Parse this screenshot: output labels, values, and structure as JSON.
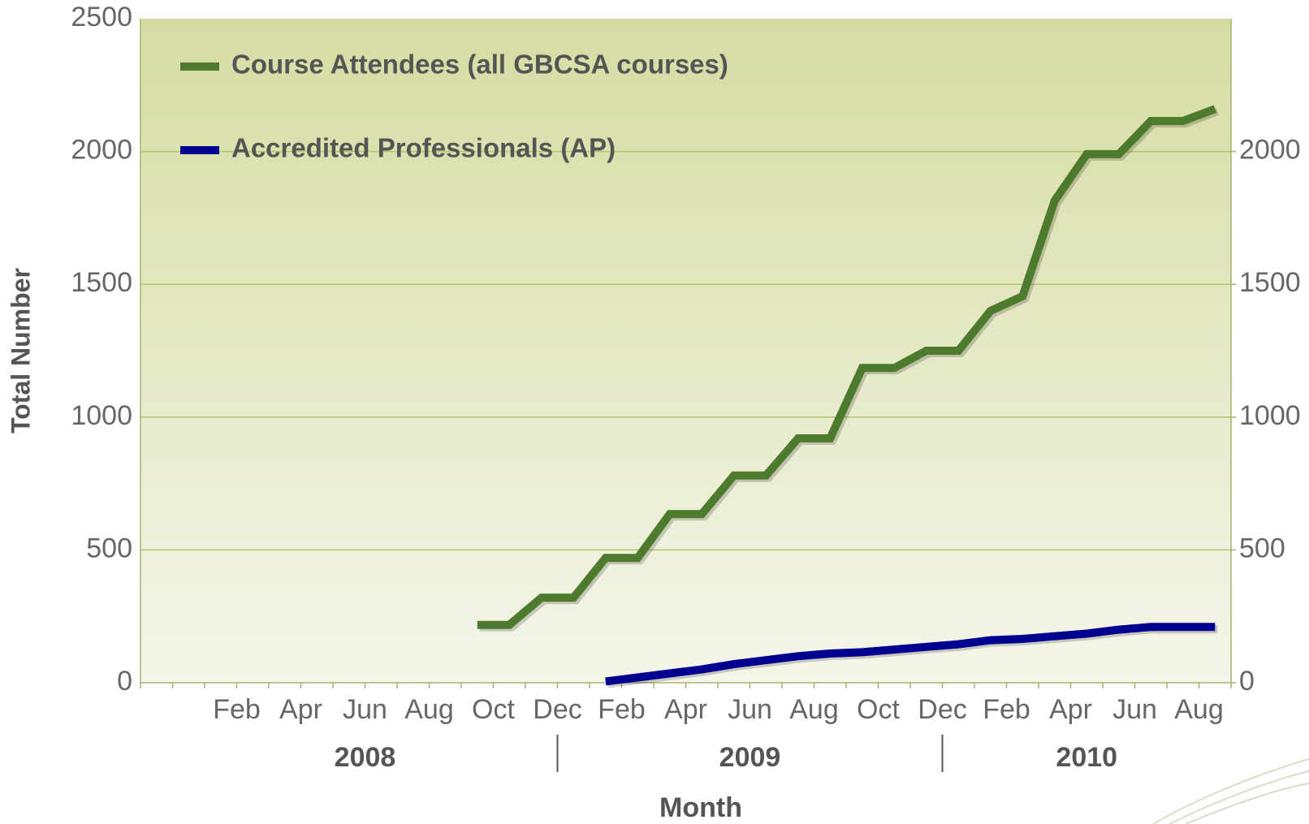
{
  "chart_data": {
    "type": "line",
    "x_label": "Month",
    "y_label": "Total Number",
    "categories": [
      null,
      null,
      "Feb",
      null,
      "Apr",
      null,
      "Jun",
      null,
      "Aug",
      null,
      "Oct",
      null,
      "Dec",
      null,
      "Feb",
      null,
      "Apr",
      null,
      "Jun",
      null,
      "Aug",
      null,
      "Oct",
      null,
      "Dec",
      null,
      "Feb",
      null,
      "Apr",
      null,
      "Jun",
      null,
      "Aug",
      null
    ],
    "category_groups": [
      {
        "label": "2008",
        "size": 12
      },
      {
        "label": "2009",
        "size": 12
      },
      {
        "label": "2010",
        "size": 9
      }
    ],
    "series": [
      {
        "name": "Course Attendees (all GBCSA courses)",
        "color": "#4e7a2d",
        "values": [
          null,
          null,
          null,
          null,
          null,
          null,
          null,
          null,
          null,
          null,
          218,
          218,
          320,
          320,
          470,
          470,
          635,
          635,
          780,
          780,
          920,
          920,
          1185,
          1185,
          1250,
          1250,
          1400,
          1455,
          1815,
          1990,
          1990,
          2115,
          2115,
          2160
        ]
      },
      {
        "name": "Accredited Professionals (AP)",
        "color": "#000090",
        "values": [
          null,
          null,
          null,
          null,
          null,
          null,
          null,
          null,
          null,
          null,
          null,
          null,
          null,
          null,
          5,
          20,
          35,
          50,
          70,
          85,
          100,
          110,
          115,
          125,
          135,
          145,
          160,
          165,
          175,
          185,
          200,
          210,
          210,
          210
        ]
      }
    ],
    "ylim": [
      0,
      2500
    ],
    "yticks": [
      0,
      500,
      1000,
      1500,
      2000,
      2500
    ],
    "y2lim": [
      0,
      2500
    ],
    "y2ticks": [
      0,
      500,
      1000,
      1500,
      2000
    ],
    "grid": true
  }
}
